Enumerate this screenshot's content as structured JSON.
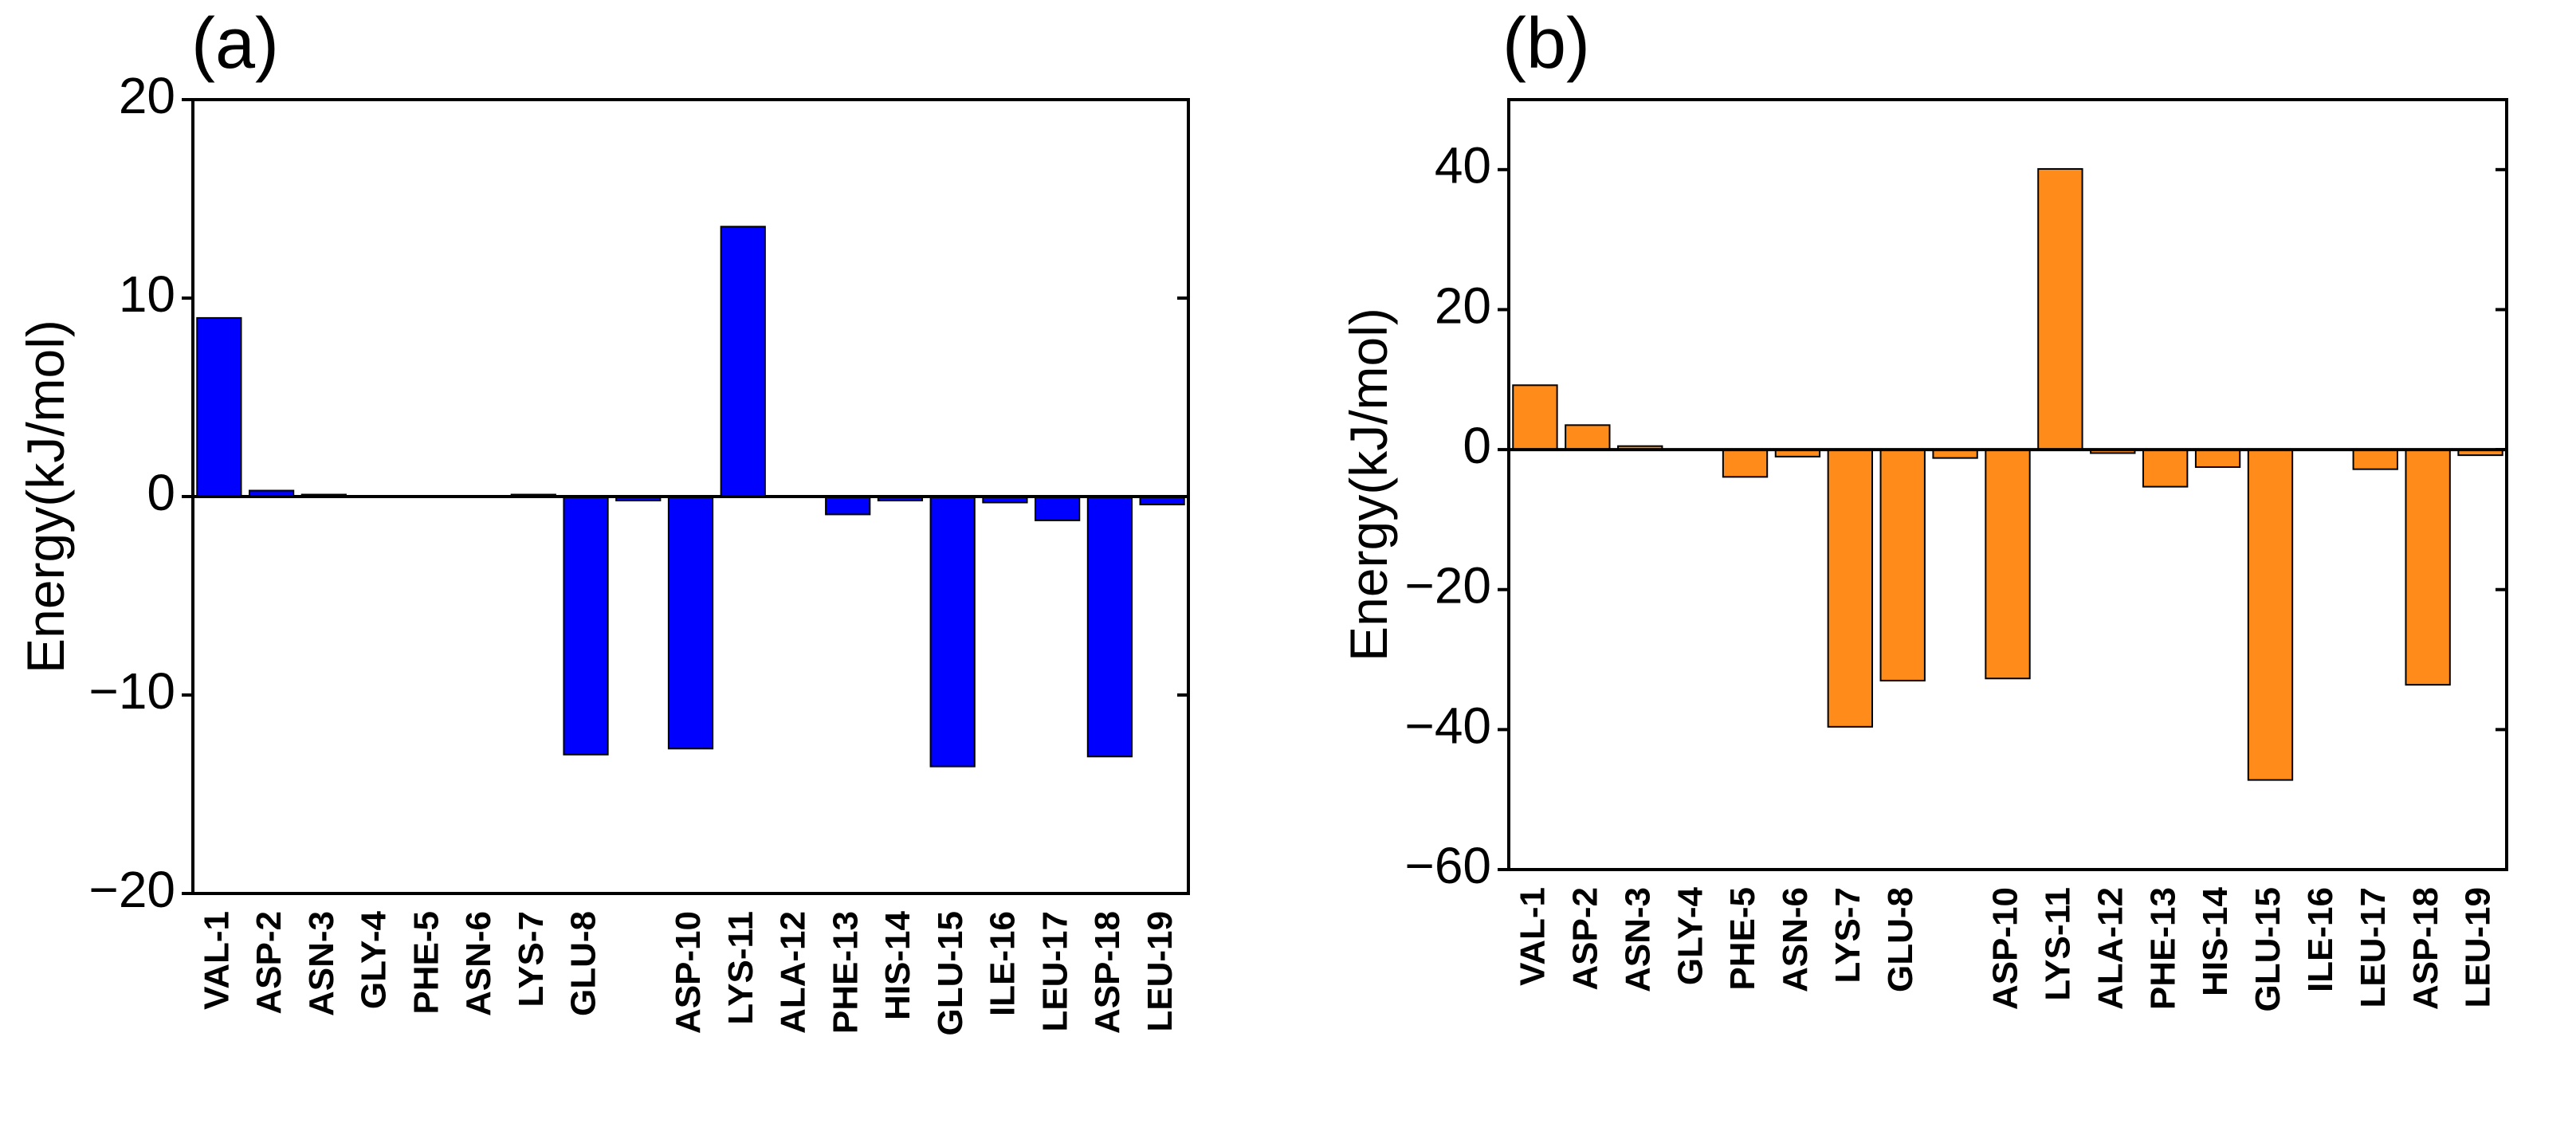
{
  "chart_data": [
    {
      "type": "bar",
      "title": "(a)",
      "y_label": "Energy(kJ/mol)",
      "color": "#0000ff",
      "categories": [
        "VAL-1",
        "ASP-2",
        "ASN-3",
        "GLY-4",
        "PHE-5",
        "ASN-6",
        "LYS-7",
        "GLU-8",
        null,
        "ASP-10",
        "LYS-11",
        "ALA-12",
        "PHE-13",
        "HIS-14",
        "GLU-15",
        "ILE-16",
        "LEU-17",
        "ASP-18",
        "LEU-19"
      ],
      "values": [
        9.0,
        0.3,
        0.1,
        0,
        0,
        0,
        0.1,
        -13.0,
        -0.2,
        -12.7,
        13.6,
        0,
        -0.9,
        -0.2,
        -13.6,
        -0.3,
        -1.2,
        -13.1,
        -0.4
      ],
      "ylim": [
        -20,
        20
      ],
      "yticks": [
        {
          "value": -20,
          "label": "−20"
        },
        {
          "value": -10,
          "label": "−10"
        },
        0,
        10,
        20
      ]
    },
    {
      "type": "bar",
      "title": "(b)",
      "y_label": "Energy(kJ/mol)",
      "color": "#ff8c1a",
      "categories": [
        "VAL-1",
        "ASP-2",
        "ASN-3",
        "GLY-4",
        "PHE-5",
        "ASN-6",
        "LYS-7",
        "GLU-8",
        null,
        "ASP-10",
        "LYS-11",
        "ALA-12",
        "PHE-13",
        "HIS-14",
        "GLU-15",
        "ILE-16",
        "LEU-17",
        "ASP-18",
        "LEU-19"
      ],
      "values": [
        9.2,
        3.5,
        0.5,
        0,
        -3.9,
        -1.0,
        -39.6,
        -33.0,
        -1.2,
        -32.7,
        40.1,
        -0.5,
        -5.3,
        -2.5,
        -47.2,
        0,
        -2.8,
        -33.6,
        -0.8
      ],
      "ylim": [
        -60,
        50
      ],
      "yticks": [
        {
          "value": -60,
          "label": "−60"
        },
        {
          "value": -40,
          "label": "−40"
        },
        {
          "value": -20,
          "label": "−20"
        },
        0,
        20,
        40
      ]
    }
  ]
}
